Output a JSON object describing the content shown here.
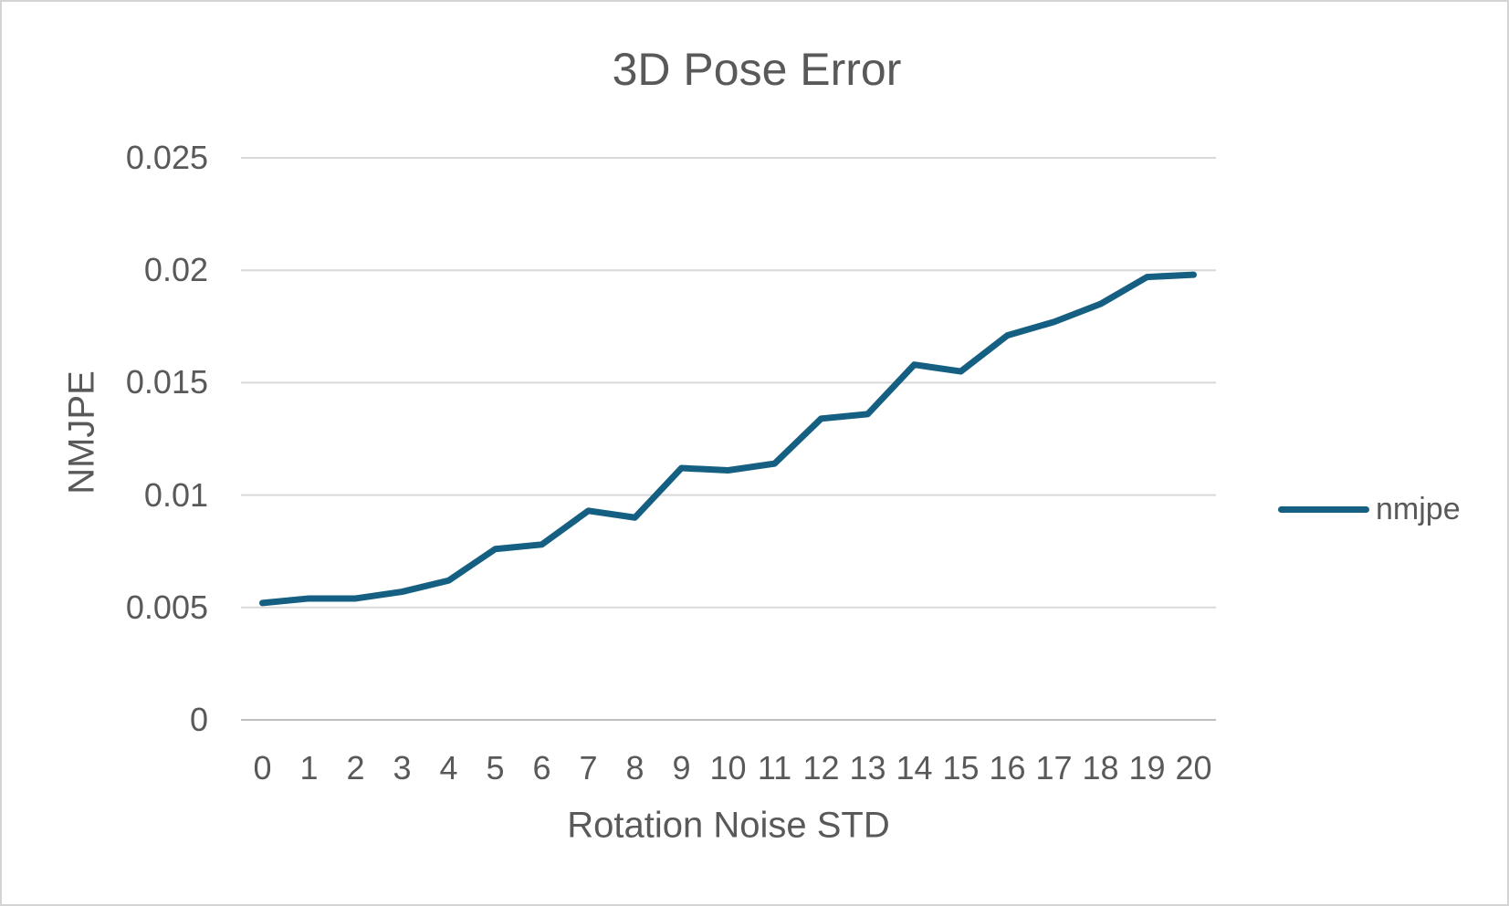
{
  "colors": {
    "accent": "#156082",
    "text": "#595959",
    "gridline": "#D9D9D9",
    "axis_line": "#BFBFBF",
    "frame_border": "#D4D4D4",
    "background": "#FFFFFF"
  },
  "legend": {
    "label": "nmjpe",
    "position": "right"
  },
  "chart_data": {
    "type": "line",
    "title": "3D Pose Error",
    "xlabel": "Rotation Noise STD",
    "ylabel": "NMJPE",
    "x": [
      0,
      1,
      2,
      3,
      4,
      5,
      6,
      7,
      8,
      9,
      10,
      11,
      12,
      13,
      14,
      15,
      16,
      17,
      18,
      19,
      20
    ],
    "xtick_labels": [
      "0",
      "1",
      "2",
      "3",
      "4",
      "5",
      "6",
      "7",
      "8",
      "9",
      "10",
      "11",
      "12",
      "13",
      "14",
      "15",
      "16",
      "17",
      "18",
      "19",
      "20"
    ],
    "series": [
      {
        "name": "nmjpe",
        "color": "#156082",
        "values": [
          0.0052,
          0.0054,
          0.0054,
          0.0057,
          0.0062,
          0.0076,
          0.0078,
          0.0093,
          0.009,
          0.0112,
          0.0111,
          0.0114,
          0.0134,
          0.0136,
          0.0158,
          0.0155,
          0.0171,
          0.0177,
          0.0185,
          0.0197,
          0.0198
        ]
      }
    ],
    "ylim": [
      0,
      0.025
    ],
    "ytick_values": [
      0,
      0.005,
      0.01,
      0.015,
      0.02,
      0.025
    ],
    "ytick_labels": [
      "0",
      "0.005",
      "0.01",
      "0.015",
      "0.02",
      "0.025"
    ],
    "grid": true,
    "legend_position": "right"
  }
}
